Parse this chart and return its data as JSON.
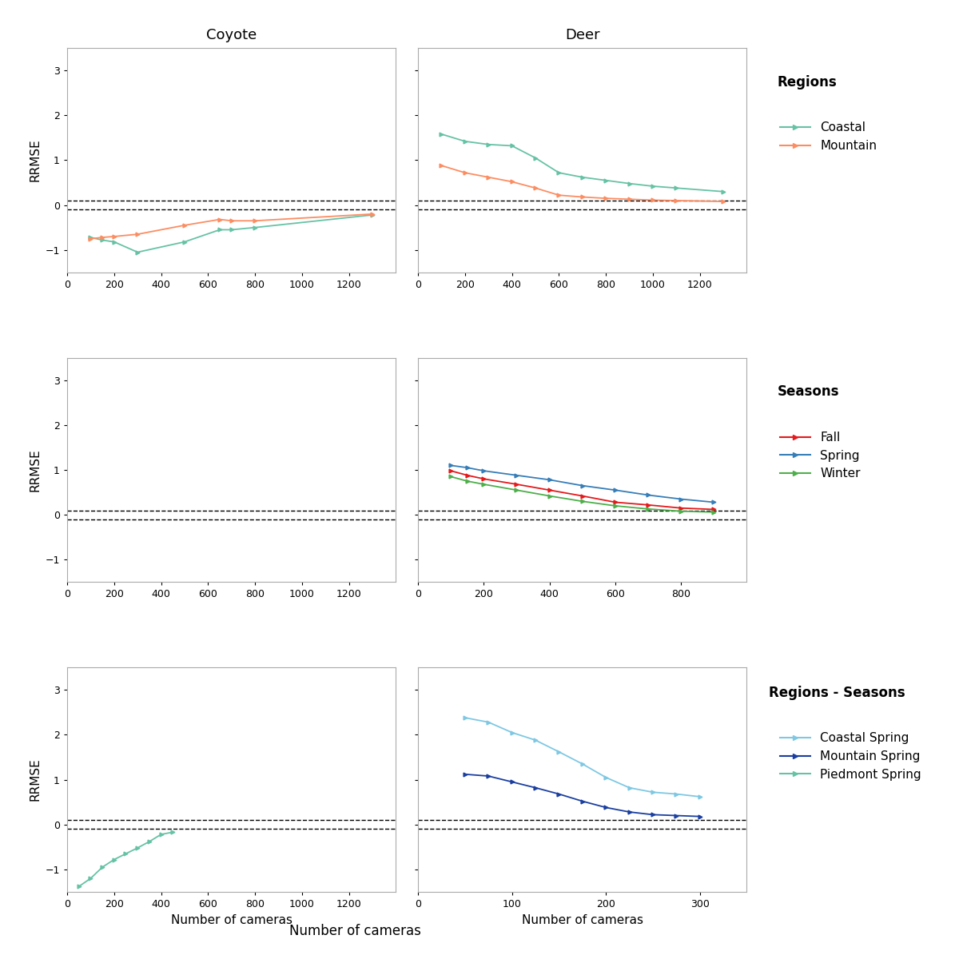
{
  "title_coyote": "Coyote",
  "title_deer": "Deer",
  "xlabel": "Number of cameras",
  "ylabel": "RRMSE",
  "ylim": [
    -1.5,
    3.5
  ],
  "yticks": [
    -1,
    0,
    1,
    2,
    3
  ],
  "xlim_std": [
    0,
    1400
  ],
  "xticks_std": [
    0,
    200,
    400,
    600,
    800,
    1000,
    1200
  ],
  "xlim_seasons": [
    0,
    1000
  ],
  "xticks_seasons": [
    0,
    200,
    400,
    600,
    800
  ],
  "xlim_row2_deer": [
    0,
    350
  ],
  "xticks_row2_deer": [
    0,
    100,
    200,
    300
  ],
  "xlim_row2_coyote": [
    0,
    1400
  ],
  "xticks_row2_coyote": [
    0,
    200,
    400,
    600,
    800,
    1000,
    1200
  ],
  "dashed_lines": [
    0.1,
    -0.1
  ],
  "row0_coyote_coastal_x": [
    100,
    150,
    200,
    300,
    500,
    650,
    700,
    800,
    1300
  ],
  "row0_coyote_coastal_y": [
    -0.72,
    -0.78,
    -0.82,
    -1.05,
    -0.82,
    -0.55,
    -0.55,
    -0.5,
    -0.22
  ],
  "row0_coyote_mountain_x": [
    100,
    150,
    200,
    300,
    500,
    650,
    700,
    800,
    1300
  ],
  "row0_coyote_mountain_y": [
    -0.75,
    -0.72,
    -0.7,
    -0.65,
    -0.45,
    -0.32,
    -0.35,
    -0.35,
    -0.2
  ],
  "row0_deer_coastal_x": [
    100,
    200,
    300,
    400,
    500,
    600,
    700,
    800,
    900,
    1000,
    1100,
    1300
  ],
  "row0_deer_coastal_y": [
    1.58,
    1.42,
    1.35,
    1.32,
    1.05,
    0.72,
    0.62,
    0.55,
    0.48,
    0.42,
    0.38,
    0.3
  ],
  "row0_deer_mountain_x": [
    100,
    200,
    300,
    400,
    500,
    600,
    700,
    800,
    900,
    1000,
    1100,
    1300
  ],
  "row0_deer_mountain_y": [
    0.88,
    0.72,
    0.62,
    0.52,
    0.38,
    0.22,
    0.18,
    0.15,
    0.13,
    0.11,
    0.1,
    0.08
  ],
  "row1_deer_fall_x": [
    100,
    150,
    200,
    300,
    400,
    500,
    600,
    700,
    800,
    900
  ],
  "row1_deer_fall_y": [
    0.98,
    0.88,
    0.8,
    0.68,
    0.55,
    0.42,
    0.28,
    0.22,
    0.15,
    0.12
  ],
  "row1_deer_spring_x": [
    100,
    150,
    200,
    300,
    400,
    500,
    600,
    700,
    800,
    900
  ],
  "row1_deer_spring_y": [
    1.1,
    1.05,
    0.98,
    0.88,
    0.78,
    0.65,
    0.55,
    0.44,
    0.35,
    0.28
  ],
  "row1_deer_winter_x": [
    100,
    150,
    200,
    300,
    400,
    500,
    600,
    700,
    800,
    900
  ],
  "row1_deer_winter_y": [
    0.85,
    0.75,
    0.68,
    0.55,
    0.42,
    0.3,
    0.2,
    0.13,
    0.08,
    0.06
  ],
  "row2_coyote_piedmont_x": [
    50,
    100,
    150,
    200,
    250,
    300,
    350,
    400,
    450
  ],
  "row2_coyote_piedmont_y": [
    -1.38,
    -1.2,
    -0.95,
    -0.78,
    -0.65,
    -0.52,
    -0.38,
    -0.22,
    -0.17
  ],
  "row2_deer_coastal_spring_x": [
    50,
    75,
    100,
    125,
    150,
    175,
    200,
    225,
    250,
    275,
    300
  ],
  "row2_deer_coastal_spring_y": [
    2.38,
    2.28,
    2.05,
    1.88,
    1.62,
    1.35,
    1.05,
    0.82,
    0.72,
    0.68,
    0.62
  ],
  "row2_deer_mountain_spring_x": [
    50,
    75,
    100,
    125,
    150,
    175,
    200,
    225,
    250,
    275,
    300
  ],
  "row2_deer_mountain_spring_y": [
    1.12,
    1.08,
    0.95,
    0.82,
    0.68,
    0.52,
    0.38,
    0.28,
    0.22,
    0.2,
    0.18
  ],
  "color_coastal": "#66C2A5",
  "color_mountain": "#FC8D62",
  "color_fall": "#E41A1C",
  "color_spring_blue": "#377EB8",
  "color_winter": "#4DAF4A",
  "color_coastal_spring": "#7EC8E3",
  "color_mountain_spring": "#1B3FA0",
  "color_piedmont_spring": "#66C2A5",
  "legend_regions_title": "Regions",
  "legend_regions_labels": [
    "Coastal",
    "Mountain"
  ],
  "legend_seasons_title": "Seasons",
  "legend_seasons_labels": [
    "Fall",
    "Spring",
    "Winter"
  ],
  "legend_regseasons_title": "Regions - Seasons",
  "legend_regseasons_labels": [
    "Coastal Spring",
    "Mountain Spring",
    "Piedmont Spring"
  ]
}
